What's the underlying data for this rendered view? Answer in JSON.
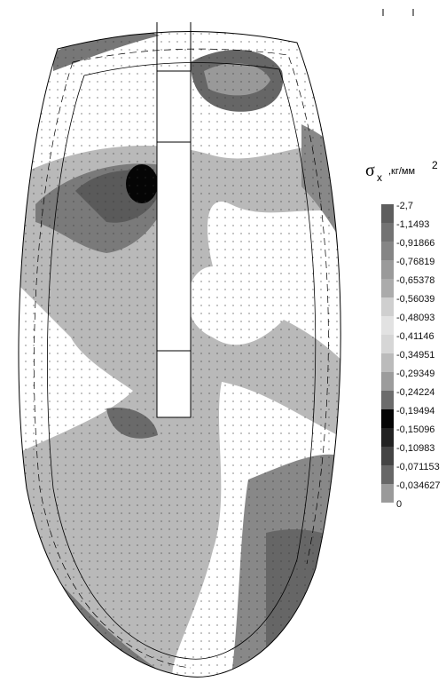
{
  "legend": {
    "symbol": "σ",
    "subscript": "x",
    "unit": ",кг/мм",
    "superscript": "2",
    "labels": [
      "-2,7",
      "-1,1493",
      "-0,91866",
      "-0,76819",
      "-0,65378",
      "-0,56039",
      "-0,48093",
      "-0,41146",
      "-0,34951",
      "-0,29349",
      "-0,24224",
      "-0,19494",
      "-0,15096",
      "-0,10983",
      "-0,071153",
      "-0,034627",
      "0"
    ],
    "colors": [
      "#5e5e5e",
      "#737373",
      "#858585",
      "#9a9a9a",
      "#ababab",
      "#cfcfcf",
      "#e2e2e2",
      "#d6d6d6",
      "#bbbbbb",
      "#9c9c9c",
      "#6c6c6c",
      "#050505",
      "#222222",
      "#444444",
      "#676767",
      "#9a9a9a"
    ]
  }
}
